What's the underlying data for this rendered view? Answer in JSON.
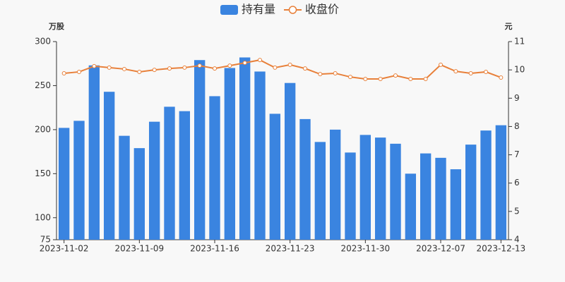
{
  "chart_data": {
    "type": "bar",
    "y_label": "万股",
    "y2_label": "元",
    "categories": [
      "2023-11-02",
      null,
      null,
      null,
      null,
      "2023-11-09",
      null,
      null,
      null,
      null,
      "2023-11-16",
      null,
      null,
      null,
      null,
      "2023-11-23",
      null,
      null,
      null,
      null,
      "2023-11-30",
      null,
      null,
      null,
      null,
      "2023-12-07",
      null,
      null,
      null,
      "2023-12-13"
    ],
    "series": [
      {
        "name": "持有量",
        "type": "bar",
        "color": "#3a84e0",
        "values": [
          202,
          210,
          273,
          243,
          193,
          179,
          209,
          226,
          221,
          279,
          238,
          270,
          282,
          266,
          218,
          253,
          212,
          186,
          200,
          174,
          194,
          191,
          184,
          150,
          173,
          168,
          155,
          183,
          199,
          205
        ]
      },
      {
        "name": "收盘价",
        "type": "line",
        "axis": "y2",
        "color": "#e8803a",
        "values": [
          9.88,
          9.93,
          10.13,
          10.08,
          10.03,
          9.93,
          10.0,
          10.05,
          10.08,
          10.15,
          10.05,
          10.15,
          10.25,
          10.35,
          10.08,
          10.18,
          10.05,
          9.85,
          9.88,
          9.75,
          9.68,
          9.68,
          9.8,
          9.68,
          9.68,
          10.18,
          9.95,
          9.88,
          9.93,
          9.73
        ]
      }
    ],
    "ylim": [
      75,
      300
    ],
    "yticks": [
      75,
      100,
      150,
      200,
      250,
      300
    ],
    "y2lim": [
      4,
      11
    ],
    "y2ticks": [
      4,
      5,
      6,
      7,
      8,
      9,
      10,
      11
    ],
    "grid": false,
    "legend": "top"
  }
}
